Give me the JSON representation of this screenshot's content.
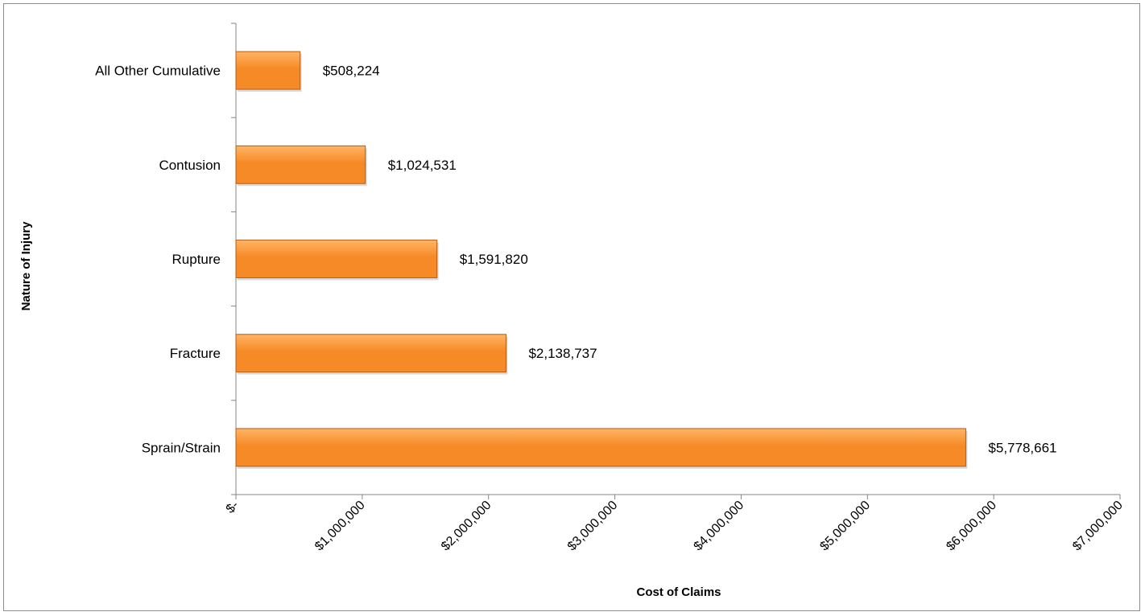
{
  "chart_data": {
    "type": "bar",
    "orientation": "horizontal",
    "title": "",
    "xlabel": "Cost of Claims",
    "ylabel": "Nature of Injury",
    "categories": [
      "Sprain/Strain",
      "Fracture",
      "Rupture",
      "Contusion",
      "All Other Cumulative"
    ],
    "values": [
      5778661,
      2138737,
      1591820,
      1024531,
      508224
    ],
    "data_labels": [
      "$5,778,661",
      "$2,138,737",
      "$1,591,820",
      "$1,024,531",
      "$508,224"
    ],
    "xlim": [
      0,
      7000000
    ],
    "x_ticks": [
      0,
      1000000,
      2000000,
      3000000,
      4000000,
      5000000,
      6000000,
      7000000
    ],
    "x_tick_labels": [
      "$-",
      "$1,000,000",
      "$2,000,000",
      "$3,000,000",
      "$4,000,000",
      "$5,000,000",
      "$6,000,000",
      "$7,000,000"
    ],
    "grid": false,
    "legend": "none",
    "bar_color": "#f68a26",
    "bar_color_light": "#ffb566",
    "bar_edge_color": "#b85c10"
  }
}
